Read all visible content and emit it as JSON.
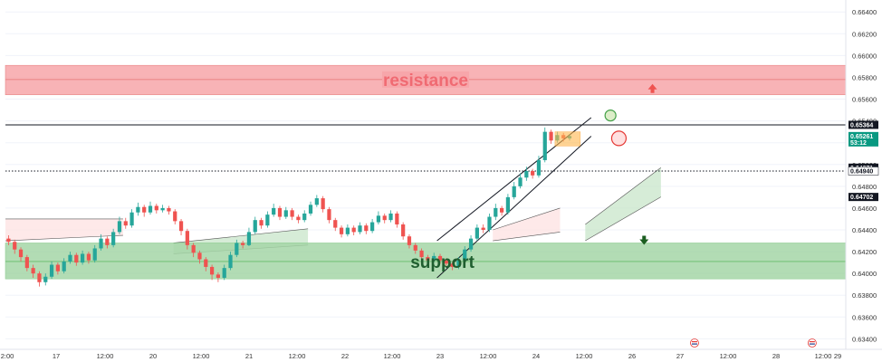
{
  "colors": {
    "bull": "#26a69a",
    "bear": "#ef5350",
    "resistance_fill": "#f7a6aa",
    "support_fill": "#a5d6a7",
    "resistance_text": "#f06a72",
    "support_text": "#1f5e2f",
    "cloud_green": "#c8e6c9",
    "cloud_red": "#fde2e2",
    "arrow_up": "#ef5350",
    "arrow_down": "#1b5e20",
    "current_tag": "#089981"
  },
  "zones": {
    "resistance": {
      "label": "resistance",
      "from": 0.6564,
      "to": 0.6591,
      "mid": 0.6578
    },
    "support": {
      "label": "support",
      "from": 0.6395,
      "to": 0.6428,
      "mid": 0.6411
    }
  },
  "price_tags": [
    {
      "value": 0.65364,
      "label": "0.65364",
      "bg": "#131722",
      "fg": "#ffffff"
    },
    {
      "value": 0.65261,
      "label": "0.65261",
      "sub": "53:12",
      "bg": "#089981",
      "fg": "#ffffff"
    },
    {
      "value": 0.64971,
      "label": "0.64971",
      "bg": "#131722",
      "fg": "#ffffff"
    },
    {
      "value": 0.6494,
      "label": "0.64940",
      "bg": "#ffffff",
      "fg": "#131722"
    },
    {
      "value": 0.64702,
      "label": "0.64702",
      "bg": "#131722",
      "fg": "#ffffff"
    }
  ],
  "chart_data": {
    "type": "candlestick",
    "y_range": [
      0.6337,
      0.6646
    ],
    "y_ticks": [
      "0.66400",
      "0.66200",
      "0.66000",
      "0.65800",
      "0.65600",
      "0.65400",
      "0.65200",
      "0.65000",
      "0.64800",
      "0.64600",
      "0.64400",
      "0.64200",
      "0.64000",
      "0.63800",
      "0.63600",
      "0.63400"
    ],
    "x_labels": [
      "2:00",
      "17",
      "12:00",
      "20",
      "12:00",
      "21",
      "12:00",
      "22",
      "12:00",
      "23",
      "12:00",
      "24",
      "12:00",
      "26",
      "27",
      "12:00",
      "28",
      "12:00",
      "29"
    ],
    "horizontal_lines": [
      {
        "value": 0.65364,
        "style": "solid"
      },
      {
        "value": 0.6494,
        "style": "dotted"
      }
    ],
    "channel": {
      "lower": [
        [
          0,
          0.6396
        ],
        [
          0.5,
          0.6526
        ]
      ],
      "upper": [
        [
          0,
          0.643
        ],
        [
          0.5,
          0.6543
        ]
      ]
    },
    "candles": [
      [
        0.6432,
        0.6429,
        0.6435,
        0.6426
      ],
      [
        0.6429,
        0.6422,
        0.6431,
        0.6418
      ],
      [
        0.6422,
        0.6415,
        0.6424,
        0.6411
      ],
      [
        0.6415,
        0.6405,
        0.6417,
        0.6402
      ],
      [
        0.6405,
        0.64,
        0.6408,
        0.6396
      ],
      [
        0.64,
        0.6392,
        0.6402,
        0.6388
      ],
      [
        0.6392,
        0.6397,
        0.64,
        0.6389
      ],
      [
        0.6397,
        0.6408,
        0.6411,
        0.6395
      ],
      [
        0.6408,
        0.6402,
        0.641,
        0.6399
      ],
      [
        0.6402,
        0.6411,
        0.6414,
        0.64
      ],
      [
        0.6411,
        0.6417,
        0.642,
        0.6409
      ],
      [
        0.6417,
        0.641,
        0.6419,
        0.6407
      ],
      [
        0.641,
        0.6418,
        0.6421,
        0.6408
      ],
      [
        0.6418,
        0.6412,
        0.642,
        0.6409
      ],
      [
        0.6412,
        0.6423,
        0.6426,
        0.641
      ],
      [
        0.6423,
        0.6432,
        0.6436,
        0.6421
      ],
      [
        0.6432,
        0.6426,
        0.6434,
        0.6423
      ],
      [
        0.6426,
        0.6438,
        0.6441,
        0.6424
      ],
      [
        0.6438,
        0.6448,
        0.6452,
        0.6436
      ],
      [
        0.6448,
        0.6444,
        0.6451,
        0.6441
      ],
      [
        0.6444,
        0.6456,
        0.6459,
        0.6442
      ],
      [
        0.6456,
        0.6461,
        0.6465,
        0.6453
      ],
      [
        0.6461,
        0.6456,
        0.6463,
        0.6452
      ],
      [
        0.6456,
        0.6462,
        0.6466,
        0.6454
      ],
      [
        0.6462,
        0.6458,
        0.6464,
        0.6455
      ],
      [
        0.6458,
        0.646,
        0.6463,
        0.6456
      ],
      [
        0.646,
        0.6457,
        0.6462,
        0.6454
      ],
      [
        0.6457,
        0.6448,
        0.6459,
        0.6445
      ],
      [
        0.6448,
        0.6439,
        0.645,
        0.6435
      ],
      [
        0.6439,
        0.6426,
        0.6441,
        0.6422
      ],
      [
        0.6426,
        0.6419,
        0.6428,
        0.6415
      ],
      [
        0.6419,
        0.6413,
        0.6421,
        0.6409
      ],
      [
        0.6413,
        0.6406,
        0.6415,
        0.6402
      ],
      [
        0.6406,
        0.6399,
        0.6408,
        0.6394
      ],
      [
        0.6399,
        0.6396,
        0.6401,
        0.6392
      ],
      [
        0.6396,
        0.6405,
        0.6408,
        0.6394
      ],
      [
        0.6405,
        0.6417,
        0.642,
        0.6403
      ],
      [
        0.6417,
        0.6428,
        0.6431,
        0.6415
      ],
      [
        0.6428,
        0.6426,
        0.643,
        0.6423
      ],
      [
        0.6426,
        0.6438,
        0.6442,
        0.6425
      ],
      [
        0.6438,
        0.6449,
        0.6452,
        0.6436
      ],
      [
        0.6449,
        0.6444,
        0.6451,
        0.6441
      ],
      [
        0.6444,
        0.6454,
        0.6457,
        0.6442
      ],
      [
        0.6454,
        0.646,
        0.6464,
        0.6452
      ],
      [
        0.646,
        0.6452,
        0.6462,
        0.6449
      ],
      [
        0.6452,
        0.6458,
        0.6461,
        0.645
      ],
      [
        0.6458,
        0.6452,
        0.646,
        0.6449
      ],
      [
        0.6452,
        0.6449,
        0.6454,
        0.6446
      ],
      [
        0.6449,
        0.6455,
        0.6458,
        0.6447
      ],
      [
        0.6455,
        0.6463,
        0.6466,
        0.6453
      ],
      [
        0.6463,
        0.6469,
        0.6472,
        0.6461
      ],
      [
        0.6469,
        0.6459,
        0.6471,
        0.6456
      ],
      [
        0.6459,
        0.6449,
        0.6461,
        0.6446
      ],
      [
        0.6449,
        0.6442,
        0.6451,
        0.6439
      ],
      [
        0.6442,
        0.6436,
        0.6444,
        0.6433
      ],
      [
        0.6436,
        0.6442,
        0.6445,
        0.6434
      ],
      [
        0.6442,
        0.6438,
        0.6444,
        0.6435
      ],
      [
        0.6438,
        0.6444,
        0.6447,
        0.6436
      ],
      [
        0.6444,
        0.6439,
        0.6446,
        0.6436
      ],
      [
        0.6439,
        0.6447,
        0.645,
        0.6437
      ],
      [
        0.6447,
        0.6453,
        0.6457,
        0.6445
      ],
      [
        0.6453,
        0.6449,
        0.6455,
        0.6446
      ],
      [
        0.6449,
        0.6455,
        0.6458,
        0.6447
      ],
      [
        0.6455,
        0.6445,
        0.6457,
        0.6442
      ],
      [
        0.6445,
        0.6434,
        0.6447,
        0.6431
      ],
      [
        0.6434,
        0.6426,
        0.6436,
        0.6423
      ],
      [
        0.6426,
        0.6421,
        0.6428,
        0.6418
      ],
      [
        0.6421,
        0.6415,
        0.6423,
        0.6412
      ],
      [
        0.6415,
        0.6412,
        0.6417,
        0.6409
      ],
      [
        0.6412,
        0.6416,
        0.6419,
        0.641
      ],
      [
        0.6416,
        0.6412,
        0.6418,
        0.6409
      ],
      [
        0.6412,
        0.6409,
        0.6414,
        0.6406
      ],
      [
        0.6409,
        0.6406,
        0.6411,
        0.6403
      ],
      [
        0.6406,
        0.6412,
        0.6415,
        0.6404
      ],
      [
        0.6412,
        0.6422,
        0.6425,
        0.641
      ],
      [
        0.6422,
        0.6432,
        0.6435,
        0.642
      ],
      [
        0.6432,
        0.6442,
        0.6445,
        0.643
      ],
      [
        0.6442,
        0.644,
        0.6445,
        0.6437
      ],
      [
        0.644,
        0.6452,
        0.6455,
        0.6438
      ],
      [
        0.6452,
        0.646,
        0.6464,
        0.6449
      ],
      [
        0.646,
        0.6456,
        0.6462,
        0.6453
      ],
      [
        0.6456,
        0.647,
        0.6473,
        0.6454
      ],
      [
        0.647,
        0.648,
        0.6484,
        0.6468
      ],
      [
        0.648,
        0.6488,
        0.6492,
        0.6478
      ],
      [
        0.6488,
        0.6494,
        0.6498,
        0.6485
      ],
      [
        0.6494,
        0.649,
        0.6496,
        0.6487
      ],
      [
        0.649,
        0.6504,
        0.6508,
        0.6488
      ],
      [
        0.6504,
        0.653,
        0.6534,
        0.6502
      ],
      [
        0.653,
        0.6522,
        0.6532,
        0.6519
      ],
      [
        0.6522,
        0.6527,
        0.653,
        0.652
      ],
      [
        0.6527,
        0.6524,
        0.6529,
        0.6521
      ],
      [
        0.6524,
        0.65261,
        0.6528,
        0.6522
      ]
    ],
    "cloud": [
      {
        "x": [
          0,
          0.14
        ],
        "upper": [
          0.645,
          0.645
        ],
        "lower": [
          0.643,
          0.6435
        ],
        "color": "red"
      },
      {
        "x": [
          0.2,
          0.36
        ],
        "upper": [
          0.6428,
          0.6441
        ],
        "lower": [
          0.6418,
          0.6426
        ],
        "color": "green"
      },
      {
        "x": [
          0.58,
          0.66
        ],
        "upper": [
          0.644,
          0.646
        ],
        "lower": [
          0.643,
          0.6438
        ],
        "color": "red"
      },
      {
        "x": [
          0.69,
          0.78
        ],
        "upper": [
          0.6445,
          0.64971
        ],
        "lower": [
          0.643,
          0.64702
        ],
        "color": "green"
      }
    ],
    "annotations": [
      {
        "kind": "circle",
        "color": "green",
        "price": 0.6545,
        "x": 0.72
      },
      {
        "kind": "circle",
        "color": "red",
        "price": 0.6524,
        "x": 0.73
      },
      {
        "kind": "arrow-up",
        "price": 0.6564,
        "x": 0.77
      },
      {
        "kind": "arrow-down",
        "price": 0.6428,
        "x": 0.76
      },
      {
        "kind": "box",
        "price_top": 0.653,
        "price_bottom": 0.6517,
        "x0": 0.654,
        "x1": 0.684
      }
    ],
    "events": [
      {
        "kind": "flag",
        "x": 0.82
      },
      {
        "kind": "flag",
        "x": 0.96
      }
    ]
  }
}
